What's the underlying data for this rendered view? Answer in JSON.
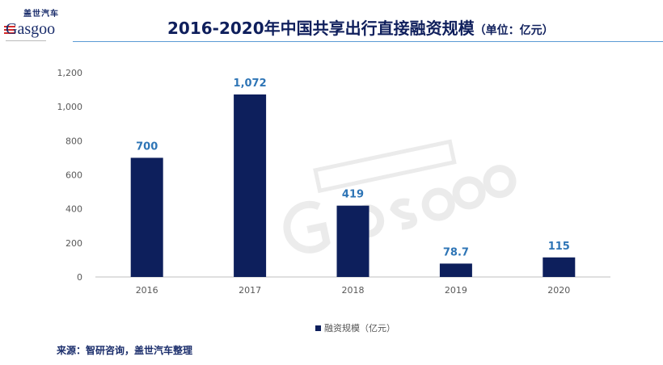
{
  "header": {
    "logo_cn": "盖世汽车",
    "logo_en": "Gasgoo",
    "title": "2016-2020年中国共享出行直接融资规模",
    "unit": "（单位：亿元）"
  },
  "watermark": {
    "cn": "盖世汽车",
    "en": "Gasgoo"
  },
  "chart_data": {
    "type": "bar",
    "title": "2016-2020年中国共享出行直接融资规模",
    "categories": [
      "2016",
      "2017",
      "2018",
      "2019",
      "2020"
    ],
    "series": [
      {
        "name": "融资规模（亿元）",
        "values": [
          700,
          1072,
          419,
          78.7,
          115
        ],
        "labels": [
          "700",
          "1,072",
          "419",
          "78.7",
          "115"
        ],
        "color": "#0d1f5c"
      }
    ],
    "ylim": [
      0,
      1200
    ],
    "yticks": [
      "0",
      "200",
      "400",
      "600",
      "800",
      "1,000",
      "1,200"
    ],
    "grid": false,
    "legend": "bottom",
    "label_color": "#2e75b6"
  },
  "footer": {
    "source": "来源：智研咨询，盖世汽车整理"
  }
}
